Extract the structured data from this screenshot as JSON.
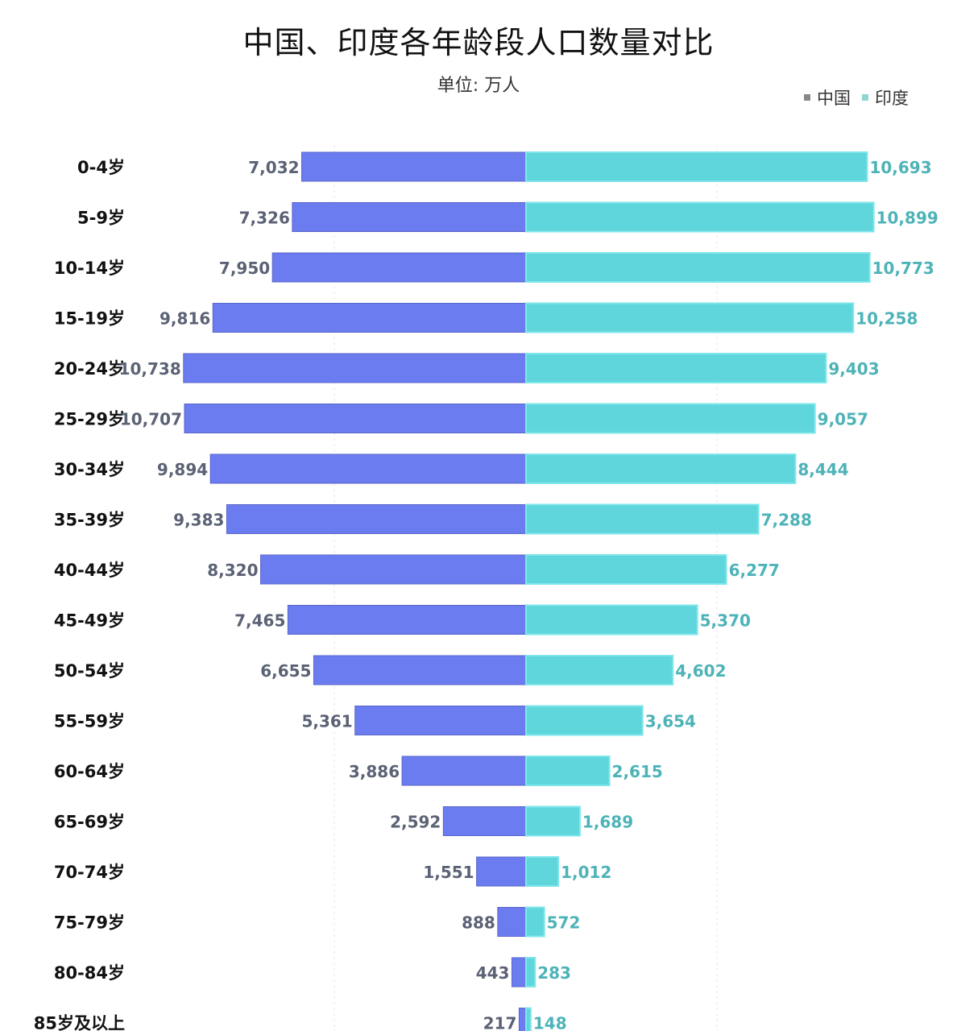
{
  "chart_data": {
    "type": "bar",
    "orientation": "horizontal-butterfly",
    "title": "中国、印度各年龄段人口数量对比",
    "subtitle": "单位: 万人",
    "legend_position": "top-right",
    "categories": [
      "0-4岁",
      "5-9岁",
      "10-14岁",
      "15-19岁",
      "20-24岁",
      "25-29岁",
      "30-34岁",
      "35-39岁",
      "40-44岁",
      "45-49岁",
      "50-54岁",
      "55-59岁",
      "60-64岁",
      "65-69岁",
      "70-74岁",
      "75-79岁",
      "80-84岁",
      "85岁及以上"
    ],
    "series": [
      {
        "name": "中国",
        "color": "#6b7cf0",
        "label_color": "#5b6275",
        "values": [
          7032,
          7326,
          7950,
          9816,
          10738,
          10707,
          9894,
          9383,
          8320,
          7465,
          6655,
          5361,
          3886,
          2592,
          1551,
          888,
          443,
          217
        ]
      },
      {
        "name": "印度",
        "color": "#5fd6dc",
        "label_color": "#4db3b8",
        "values": [
          10693,
          10899,
          10773,
          10258,
          9403,
          9057,
          8444,
          7288,
          6277,
          5370,
          4602,
          3654,
          2615,
          1689,
          1012,
          572,
          283,
          148
        ]
      }
    ],
    "labels": {
      "中国": [
        "7,032",
        "7,326",
        "7,950",
        "9,816",
        "10,738",
        "10,707",
        "9,894",
        "9,383",
        "8,320",
        "7,465",
        "6,655",
        "5,361",
        "3,886",
        "2,592",
        "1,551",
        "888",
        "443",
        "217"
      ],
      "印度": [
        "10,693",
        "10,899",
        "10,773",
        "10,258",
        "9,403",
        "9,057",
        "8,444",
        "7,288",
        "6,277",
        "5,370",
        "4,602",
        "3,654",
        "2,615",
        "1,689",
        "1,012",
        "572",
        "283",
        "148"
      ]
    },
    "grid": true
  }
}
